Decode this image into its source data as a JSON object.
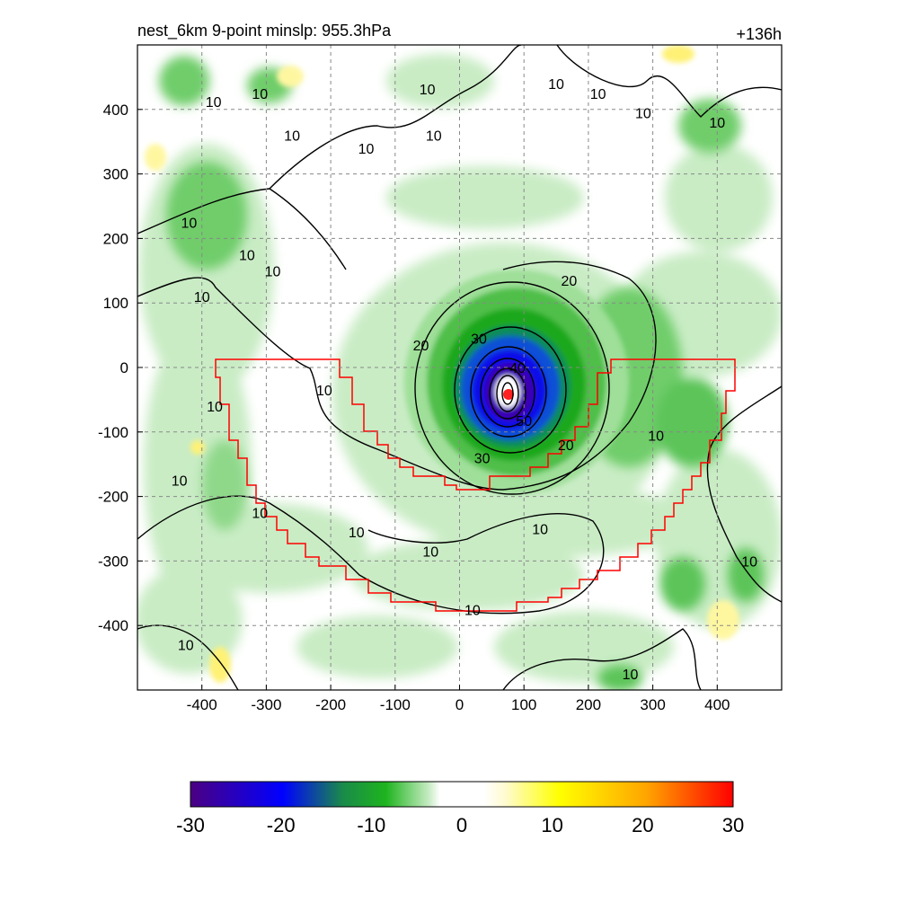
{
  "title_left": "nest_6km  9-point minslp: 955.3hPa",
  "title_right": "+136h",
  "chart_data": {
    "type": "heatmap",
    "title": "nest_6km  9-point minslp: 955.3hPa",
    "forecast_hour_label": "+136h",
    "min_slp": "955.3hPa",
    "xlim": [
      -500,
      500
    ],
    "ylim": [
      -500,
      500
    ],
    "x_ticks": [
      -400,
      -300,
      -200,
      -100,
      0,
      100,
      200,
      300,
      400
    ],
    "y_ticks": [
      400,
      300,
      200,
      100,
      0,
      -100,
      -200,
      -300,
      -400
    ],
    "x_tick_labels": [
      "-400",
      "-300",
      "-200",
      "-100",
      "0",
      "100",
      "200",
      "300",
      "400"
    ],
    "y_tick_labels": [
      "400",
      "300",
      "200",
      "100",
      "0",
      "-100",
      "-200",
      "-300",
      "-400"
    ],
    "grid": true,
    "colorbar": {
      "range": [
        -30,
        30
      ],
      "ticks": [
        "-30",
        "-20",
        "-10",
        "0",
        "10",
        "20",
        "30"
      ],
      "orientation": "horizontal",
      "placement": "bottom",
      "low_color": "#4b0082",
      "mid_color": "#ffffff",
      "high_color": "#ff0000"
    },
    "storm_center": {
      "x": 76,
      "y": -42
    },
    "contours": {
      "levels": [
        10,
        20,
        30
      ],
      "labels": [
        {
          "text": "10",
          "x": -382,
          "y": 412
        },
        {
          "text": "10",
          "x": -310,
          "y": 425
        },
        {
          "text": "10",
          "x": -260,
          "y": 360
        },
        {
          "text": "10",
          "x": -145,
          "y": 340
        },
        {
          "text": "10",
          "x": -50,
          "y": 432
        },
        {
          "text": "10",
          "x": -40,
          "y": 360
        },
        {
          "text": "10",
          "x": 150,
          "y": 440
        },
        {
          "text": "10",
          "x": 215,
          "y": 425
        },
        {
          "text": "10",
          "x": 285,
          "y": 395
        },
        {
          "text": "10",
          "x": 400,
          "y": 380
        },
        {
          "text": "10",
          "x": -420,
          "y": 225
        },
        {
          "text": "10",
          "x": -400,
          "y": 110
        },
        {
          "text": "10",
          "x": -330,
          "y": 175
        },
        {
          "text": "10",
          "x": -290,
          "y": 150
        },
        {
          "text": "10",
          "x": -210,
          "y": -35
        },
        {
          "text": "10",
          "x": -380,
          "y": -60
        },
        {
          "text": "10",
          "x": -435,
          "y": -175
        },
        {
          "text": "10",
          "x": -310,
          "y": -225
        },
        {
          "text": "10",
          "x": -160,
          "y": -255
        },
        {
          "text": "10",
          "x": -45,
          "y": -285
        },
        {
          "text": "10",
          "x": 125,
          "y": -250
        },
        {
          "text": "10",
          "x": 20,
          "y": -375
        },
        {
          "text": "10",
          "x": 305,
          "y": -105
        },
        {
          "text": "10",
          "x": 450,
          "y": -300
        },
        {
          "text": "10",
          "x": -425,
          "y": -430
        },
        {
          "text": "10",
          "x": 265,
          "y": -475
        },
        {
          "text": "20",
          "x": -60,
          "y": 35
        },
        {
          "text": "20",
          "x": 170,
          "y": 135
        },
        {
          "text": "20",
          "x": 165,
          "y": -120
        },
        {
          "text": "30",
          "x": 30,
          "y": 45
        },
        {
          "text": "30",
          "x": 35,
          "y": -140
        },
        {
          "text": "40",
          "x": 90,
          "y": 0
        },
        {
          "text": "50",
          "x": 100,
          "y": -82
        }
      ]
    }
  }
}
